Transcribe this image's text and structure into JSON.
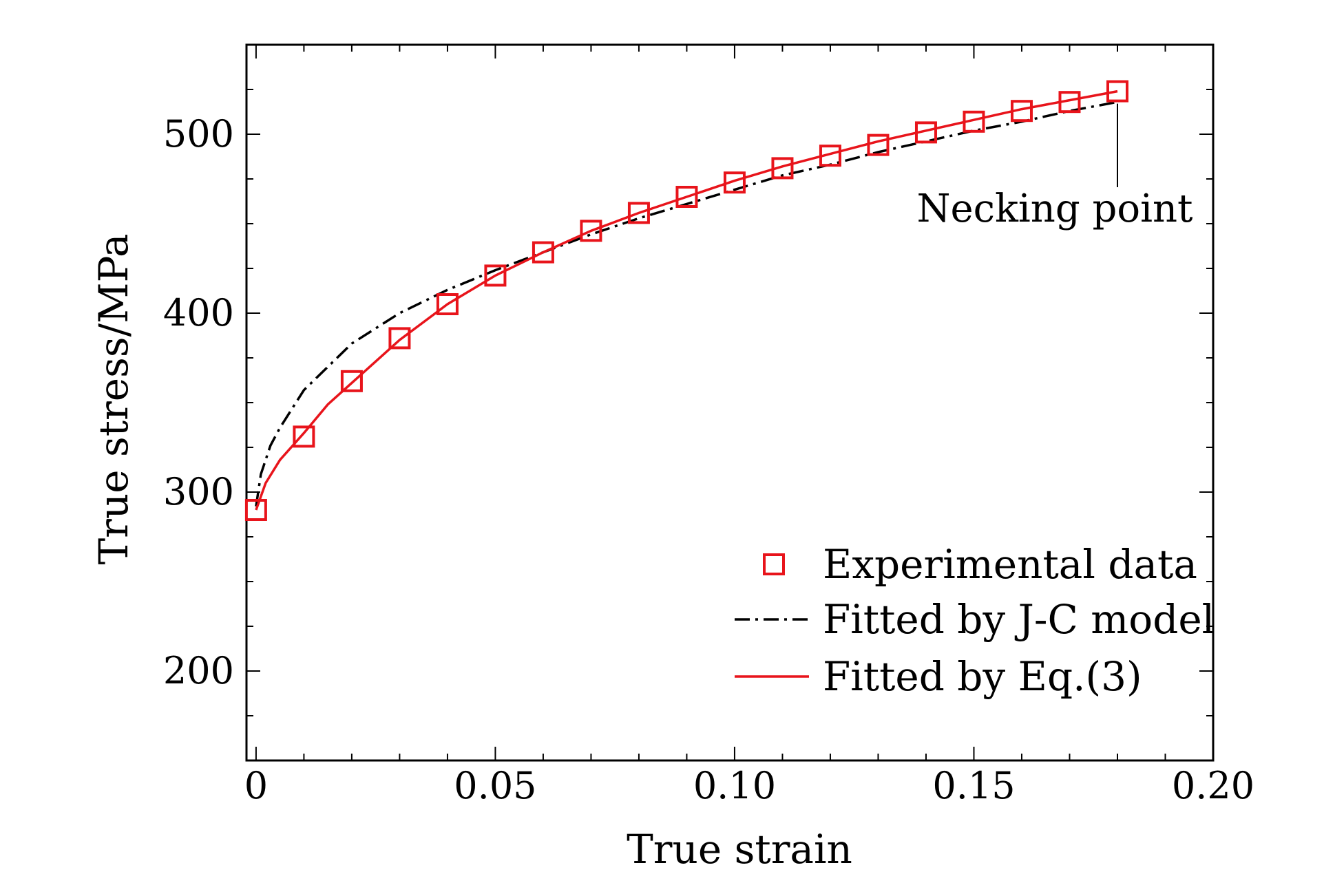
{
  "chart_data": {
    "type": "line",
    "title": "",
    "xlabel": "True strain",
    "ylabel": "True stress/MPa",
    "xlim": [
      -0.002,
      0.2
    ],
    "ylim": [
      150,
      550
    ],
    "x_ticks": [
      0,
      0.05,
      0.1,
      0.15,
      0.2
    ],
    "x_tick_labels": [
      "0",
      "0.05",
      "0.10",
      "0.15",
      "0.20"
    ],
    "y_ticks": [
      200,
      300,
      400,
      500
    ],
    "y_tick_labels": [
      "200",
      "300",
      "400",
      "500"
    ],
    "grid": false,
    "legend_position": "bottom-right",
    "annotation": {
      "text": "Necking point",
      "x": 0.18,
      "y": 524
    },
    "series": [
      {
        "name": "Experimental data",
        "style": "markers",
        "marker": "square",
        "color": "#e8141b",
        "x": [
          0,
          0.01,
          0.02,
          0.03,
          0.04,
          0.05,
          0.06,
          0.07,
          0.08,
          0.09,
          0.1,
          0.11,
          0.12,
          0.13,
          0.14,
          0.15,
          0.16,
          0.17,
          0.18
        ],
        "y": [
          290,
          331,
          362,
          386,
          405,
          421,
          434,
          446,
          456,
          465,
          473,
          481,
          488,
          494,
          501,
          507,
          513,
          518,
          524
        ]
      },
      {
        "name": "Fitted by J-C model",
        "style": "dash-dot",
        "color": "#000000",
        "x": [
          0,
          0.001,
          0.003,
          0.005,
          0.01,
          0.02,
          0.03,
          0.04,
          0.05,
          0.06,
          0.07,
          0.08,
          0.09,
          0.1,
          0.11,
          0.12,
          0.13,
          0.14,
          0.15,
          0.16,
          0.17,
          0.18
        ],
        "y": [
          292,
          310,
          326,
          336,
          357,
          383,
          400,
          413,
          424,
          434,
          444,
          453,
          461,
          469,
          477,
          483,
          490,
          496,
          502,
          507,
          513,
          518
        ]
      },
      {
        "name": "Fitted by Eq.(3)",
        "style": "solid",
        "color": "#e8141b",
        "x": [
          0,
          0.002,
          0.005,
          0.01,
          0.015,
          0.02,
          0.03,
          0.04,
          0.05,
          0.06,
          0.07,
          0.08,
          0.09,
          0.1,
          0.11,
          0.12,
          0.13,
          0.14,
          0.15,
          0.16,
          0.17,
          0.18
        ],
        "y": [
          290,
          305,
          318,
          333,
          349,
          361,
          385,
          405,
          421,
          434,
          446,
          456,
          465,
          474,
          482,
          489,
          496,
          502,
          508,
          514,
          519,
          524
        ]
      }
    ]
  }
}
